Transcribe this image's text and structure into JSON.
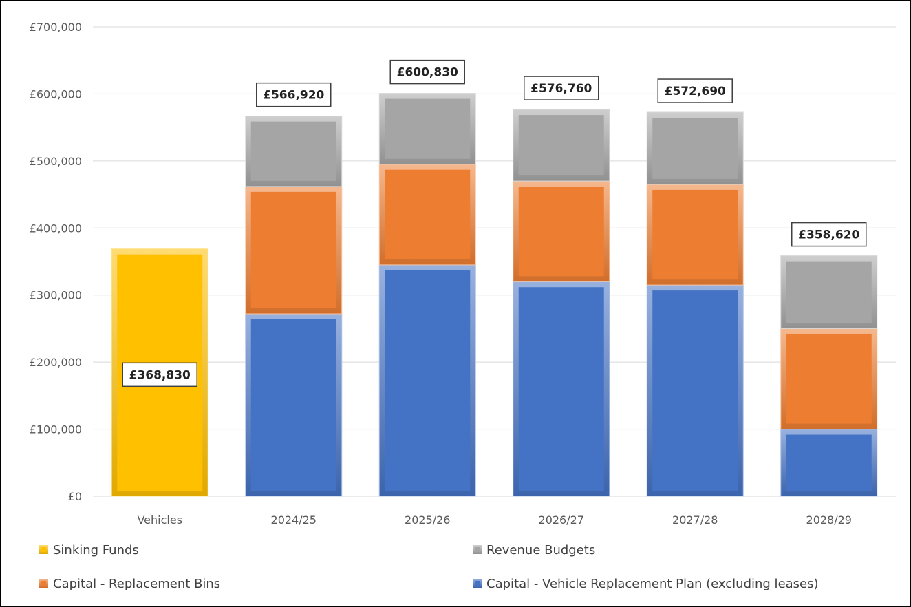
{
  "chart_data": {
    "type": "bar",
    "stacked": true,
    "categories": [
      "Vehicles",
      "2024/25",
      "2025/26",
      "2026/27",
      "2027/28",
      "2028/29"
    ],
    "series": [
      {
        "key": "sinking",
        "name": "Sinking Funds",
        "color": "#FFC000",
        "values": [
          368830,
          0,
          0,
          0,
          0,
          0
        ]
      },
      {
        "key": "vehicle",
        "name": "Capital - Vehicle Replacement Plan (excluding leases)",
        "color": "#4472C4",
        "values": [
          0,
          272000,
          345000,
          320000,
          315000,
          100000
        ]
      },
      {
        "key": "bins",
        "name": "Capital - Replacement Bins",
        "color": "#ED7D31",
        "values": [
          0,
          190000,
          150000,
          150000,
          150000,
          150000
        ]
      },
      {
        "key": "revenue",
        "name": "Revenue Budgets",
        "color": "#A5A5A5",
        "values": [
          0,
          104920,
          105830,
          106760,
          107690,
          108620
        ]
      }
    ],
    "totals": [
      368830,
      566920,
      600830,
      576760,
      572690,
      358620
    ],
    "total_labels": [
      "£368,830",
      "£566,920",
      "£600,830",
      "£576,760",
      "£572,690",
      "£358,620"
    ],
    "ylim": [
      0,
      700000
    ],
    "yticks": [
      0,
      100000,
      200000,
      300000,
      400000,
      500000,
      600000,
      700000
    ],
    "ytick_labels": [
      "£0",
      "£100,000",
      "£200,000",
      "£300,000",
      "£400,000",
      "£500,000",
      "£600,000",
      "£700,000"
    ],
    "grid": true,
    "legend": {
      "position": "bottom",
      "rows": [
        [
          "Sinking Funds",
          "Revenue Budgets"
        ],
        [
          "Capital - Replacement Bins",
          "Capital - Vehicle Replacement Plan (excluding leases)"
        ]
      ]
    }
  }
}
